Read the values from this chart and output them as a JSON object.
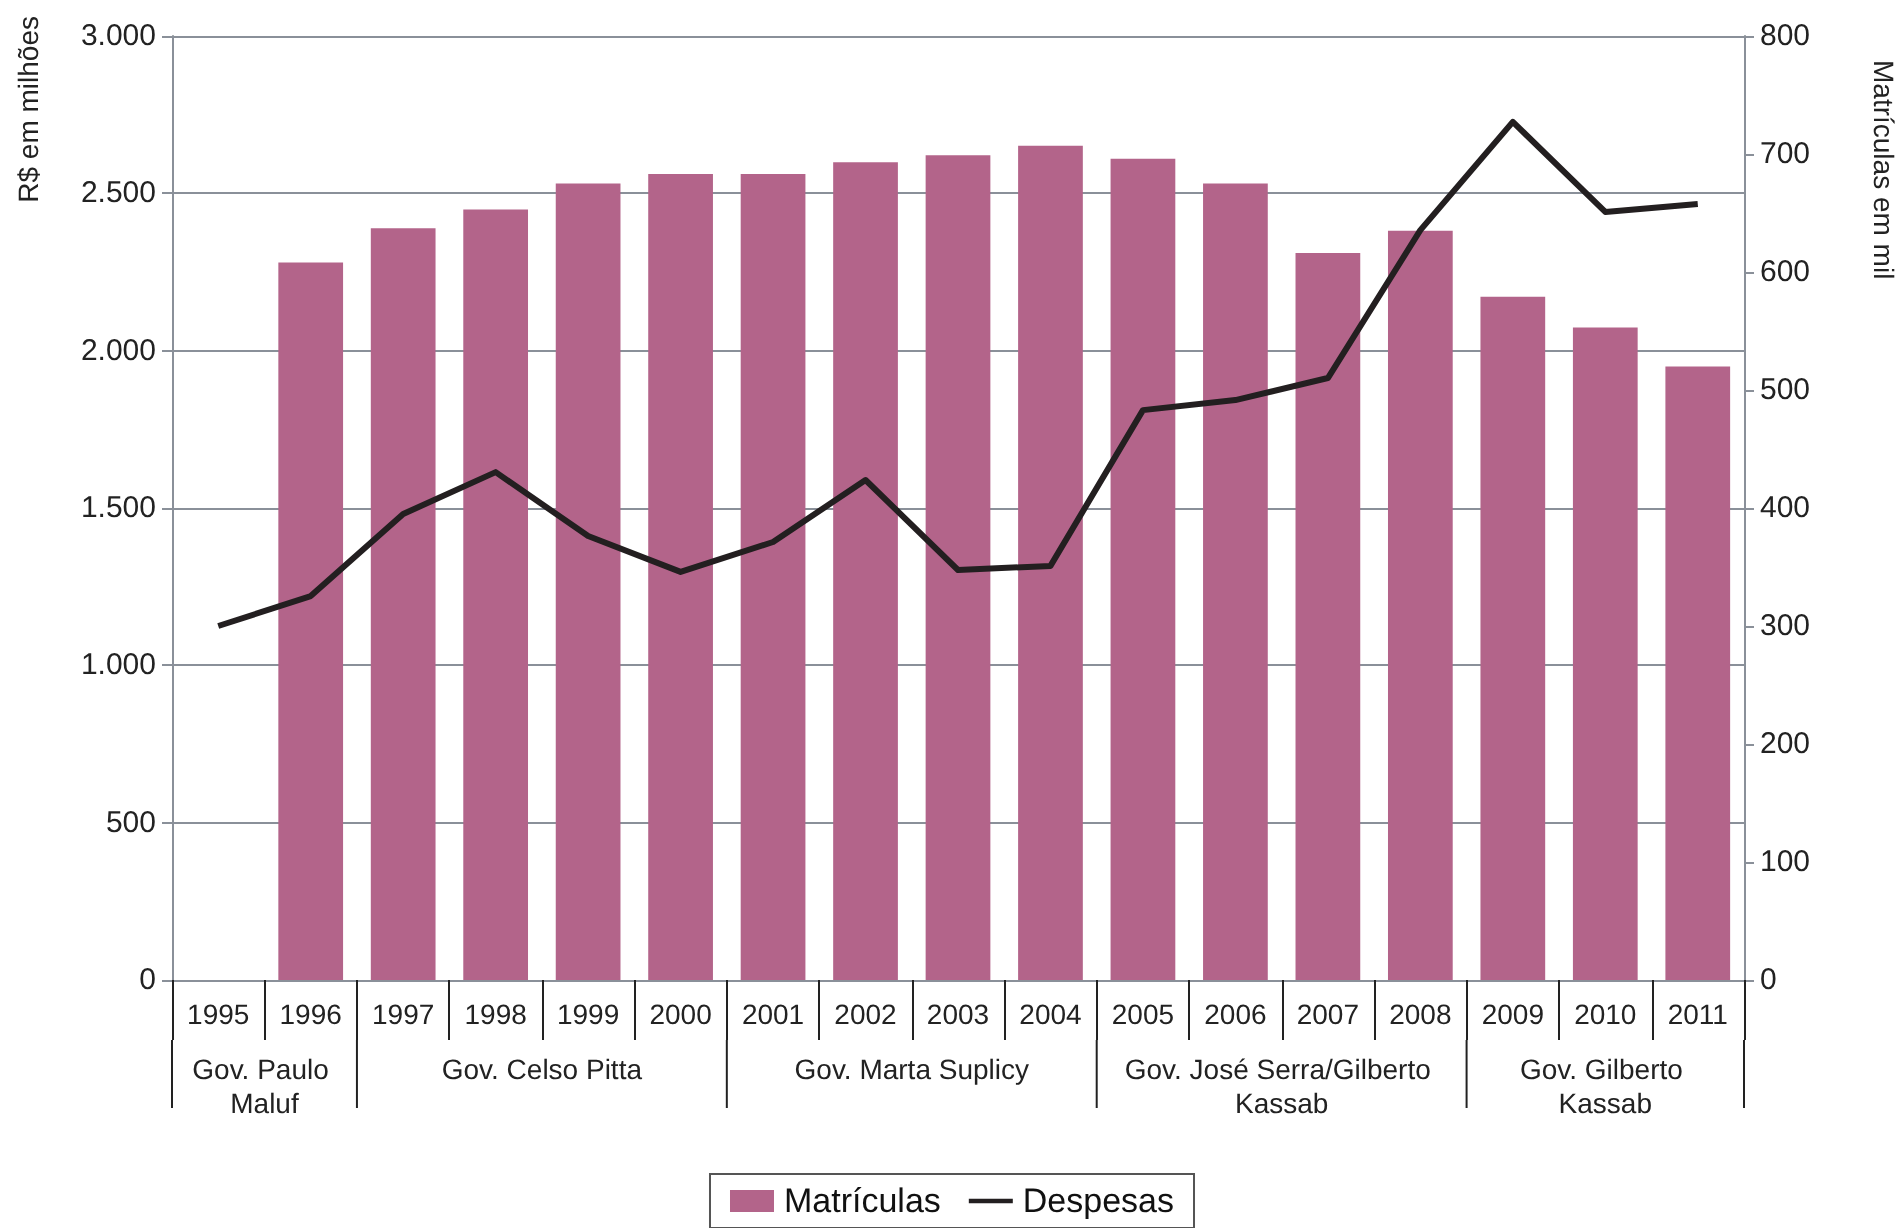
{
  "chart_data": {
    "type": "bar",
    "categories": [
      "1995",
      "1996",
      "1997",
      "1998",
      "1999",
      "2000",
      "2001",
      "2002",
      "2003",
      "2004",
      "2005",
      "2006",
      "2007",
      "2008",
      "2009",
      "2010",
      "2011"
    ],
    "series": [
      {
        "name": "Matrículas",
        "axis": "y2",
        "color": "#b3648a",
        "values": [
          null,
          608,
          637,
          653,
          675,
          683,
          683,
          693,
          699,
          707,
          696,
          675,
          616,
          635,
          579,
          553,
          520
        ]
      },
      {
        "name": "Despesas",
        "type": "line",
        "color": "#231f20",
        "marker": "none",
        "line_style": "solid",
        "values": [
          1125,
          1220,
          1481,
          1614,
          1411,
          1297,
          1392,
          1589,
          1303,
          1316,
          1811,
          1843,
          1913,
          2383,
          2727,
          2441,
          2466
        ]
      }
    ],
    "ylabel": "R$ em milhões",
    "y2label": "Matrículas em mil",
    "ylim": [
      0,
      3000
    ],
    "yticks": [
      {
        "value": 0,
        "label": "0"
      },
      {
        "value": 500,
        "label": "500"
      },
      {
        "value": 1000,
        "label": "1.000"
      },
      {
        "value": 1500,
        "label": "1.500"
      },
      {
        "value": 2000,
        "label": "2.000"
      },
      {
        "value": 2500,
        "label": "2.500"
      },
      {
        "value": 3000,
        "label": "3.000"
      }
    ],
    "y2lim": [
      0,
      800
    ],
    "y2ticks": [
      0,
      100,
      200,
      300,
      400,
      500,
      600,
      700,
      800
    ],
    "grid": "y",
    "legend": "bottom",
    "annotations": [
      "Gov. Paulo Maluf",
      "Gov. Celso Pitta",
      "Gov. Marta Suplicy",
      "Gov. José Serra/Gilberto Kassab",
      "Gov. Gilberto Kassab"
    ]
  }
}
